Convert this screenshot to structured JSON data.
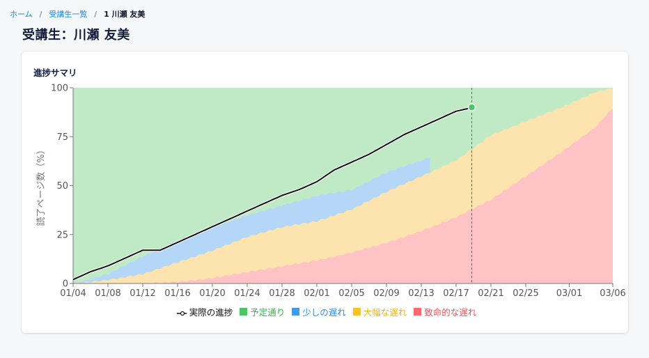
{
  "breadcrumb": {
    "items": [
      {
        "label": "ホーム"
      },
      {
        "label": "受講生一覧"
      }
    ],
    "separator": "/",
    "current": "1 川瀬 友美"
  },
  "page": {
    "title": "受講生：川瀬 友美"
  },
  "card": {
    "title": "進捗サマリ"
  },
  "colors": {
    "on_track": "#4cc564",
    "slight_delay": "#3c9cf0",
    "major_delay": "#ffc21f",
    "critical_delay": "#ff6b70",
    "actual_line": "#111111"
  },
  "chart_data": {
    "type": "area",
    "title": "進捗サマリ",
    "xlabel": "",
    "ylabel": "読了ページ数（%）",
    "ylim": [
      0,
      100
    ],
    "yticks": [
      0,
      25,
      50,
      75,
      100
    ],
    "xticks": [
      "01/04",
      "01/08",
      "01/12",
      "01/16",
      "01/20",
      "01/24",
      "01/28",
      "02/01",
      "02/05",
      "02/09",
      "02/13",
      "02/17",
      "02/21",
      "02/25",
      "03/01",
      "03/06"
    ],
    "x_range": [
      "01/04",
      "03/06"
    ],
    "current_date_marker": "02/18",
    "legend_position": "bottom",
    "legend": [
      {
        "label": "実際の進捗",
        "type": "line"
      },
      {
        "label": "予定通り",
        "type": "area"
      },
      {
        "label": "少しの遅れ",
        "type": "area"
      },
      {
        "label": "大幅な遅れ",
        "type": "area"
      },
      {
        "label": "致命的な遅れ",
        "type": "area"
      }
    ],
    "x_days": [
      0,
      4,
      8,
      12,
      16,
      20,
      24,
      28,
      32,
      36,
      40,
      44,
      46,
      48,
      52,
      56,
      60,
      62
    ],
    "series": [
      {
        "name": "実際の進捗",
        "days": [
          0,
          2,
          4,
          6,
          8,
          10,
          12,
          14,
          16,
          18,
          20,
          22,
          24,
          26,
          28,
          30,
          32,
          34,
          36,
          38,
          40,
          42,
          44,
          46
        ],
        "values": [
          2,
          6,
          9,
          13,
          17,
          17,
          21,
          25,
          29,
          33,
          37,
          41,
          45,
          48,
          52,
          58,
          62,
          66,
          71,
          76,
          80,
          84,
          88,
          90
        ]
      },
      {
        "name": "少しの遅れ(上限)",
        "days": [
          0,
          4,
          8,
          12,
          16,
          20,
          24,
          28,
          32,
          36,
          40,
          44,
          46
        ],
        "values": [
          0,
          5,
          14,
          22,
          29,
          35,
          40,
          45,
          48,
          57,
          63,
          70,
          73
        ]
      },
      {
        "name": "大幅な遅れ(上限)",
        "days": [
          0,
          4,
          8,
          12,
          16,
          20,
          24,
          28,
          32,
          36,
          40,
          44,
          48,
          52,
          56,
          60,
          62
        ],
        "values": [
          0,
          2,
          5,
          11,
          17,
          24,
          29,
          32,
          38,
          47,
          55,
          63,
          76,
          83,
          90,
          98,
          100
        ]
      },
      {
        "name": "致命的な遅れ(上限)",
        "days": [
          0,
          4,
          8,
          12,
          16,
          20,
          24,
          28,
          32,
          36,
          40,
          44,
          48,
          52,
          56,
          60,
          62
        ],
        "values": [
          0,
          0,
          0,
          1,
          3,
          6,
          9,
          12,
          16,
          21,
          27,
          34,
          43,
          55,
          67,
          80,
          90
        ]
      }
    ]
  }
}
